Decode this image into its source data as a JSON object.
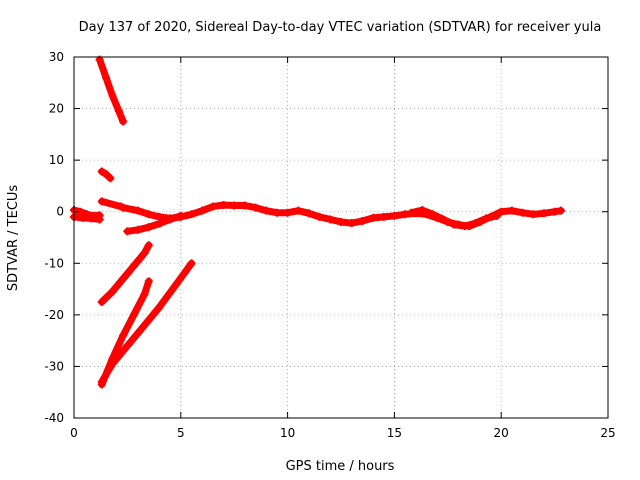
{
  "chart_data": {
    "type": "scatter",
    "title": "Day 137 of 2020, Sidereal Day-to-day VTEC variation (SDTVAR) for receiver yula",
    "xlabel": "GPS time / hours",
    "ylabel": "SDTVAR / TECUs",
    "xlim": [
      0,
      25
    ],
    "ylim": [
      -40,
      30
    ],
    "xticks": [
      0,
      5,
      10,
      15,
      20,
      25
    ],
    "yticks": [
      -40,
      -30,
      -20,
      -10,
      0,
      10,
      20,
      30
    ],
    "xtick_labels": [
      "0",
      "5",
      "10",
      "15",
      "20",
      "25"
    ],
    "ytick_labels": [
      "-40",
      "-30",
      "-20",
      "-10",
      "0",
      "10",
      "20",
      "30"
    ],
    "grid": true,
    "marker": "plus",
    "color": "#ff0000",
    "series": [
      {
        "name": "arc-main",
        "x": [
          2.3,
          3.0,
          3.5,
          4.0,
          4.5,
          5.0,
          5.5,
          6.0,
          6.5,
          7.0,
          7.5,
          8.0,
          8.5,
          9.0,
          9.5,
          10.0,
          10.5,
          11.0,
          11.5,
          12.0,
          12.5,
          13.0,
          13.5,
          14.0,
          14.5,
          15.0,
          15.5,
          16.0,
          16.5,
          17.0,
          17.5,
          18.0,
          18.5,
          19.0,
          19.5,
          20.0,
          20.5,
          21.0,
          21.5,
          22.0,
          22.5,
          22.8
        ],
        "y": [
          0.8,
          0.2,
          -0.5,
          -1.0,
          -1.3,
          -1.0,
          -0.5,
          0.2,
          1.0,
          1.3,
          1.2,
          1.2,
          0.8,
          0.2,
          -0.2,
          -0.2,
          0.2,
          -0.3,
          -1.0,
          -1.5,
          -2.0,
          -2.2,
          -1.8,
          -1.2,
          -1.0,
          -0.8,
          -0.5,
          -0.3,
          -0.5,
          -1.2,
          -2.0,
          -2.5,
          -2.8,
          -2.0,
          -1.0,
          0.0,
          0.2,
          -0.2,
          -0.5,
          -0.3,
          0.0,
          0.2
        ]
      },
      {
        "name": "arc-split",
        "x": [
          15.8,
          16.3,
          16.8,
          17.3,
          17.8,
          18.3,
          18.8,
          19.3,
          19.8
        ],
        "y": [
          -0.2,
          0.3,
          -0.5,
          -1.5,
          -2.5,
          -2.8,
          -2.2,
          -1.3,
          -0.8
        ]
      },
      {
        "name": "arc-start",
        "x": [
          0.0,
          0.3,
          0.6,
          0.9,
          1.2
        ],
        "y": [
          0.3,
          0.0,
          -0.5,
          -0.8,
          -0.7
        ]
      },
      {
        "name": "arc-start-low",
        "x": [
          0.0,
          0.4,
          0.8,
          1.2
        ],
        "y": [
          -1.0,
          -1.2,
          -1.3,
          -1.5
        ]
      },
      {
        "name": "arc-short",
        "x": [
          2.5,
          3.0,
          3.5,
          4.0,
          4.5,
          5.0
        ],
        "y": [
          -3.8,
          -3.5,
          -3.0,
          -2.3,
          -1.5,
          -0.8
        ]
      },
      {
        "name": "arc-desc",
        "x": [
          1.2,
          1.5,
          1.8,
          2.1,
          2.3
        ],
        "y": [
          29.5,
          26.0,
          22.5,
          19.5,
          17.5
        ]
      },
      {
        "name": "arc-desc-short",
        "x": [
          1.3,
          1.5,
          1.7
        ],
        "y": [
          7.8,
          7.3,
          6.5
        ]
      },
      {
        "name": "arc-rise-1",
        "x": [
          1.3,
          1.8,
          2.3,
          2.8,
          3.3,
          3.5
        ],
        "y": [
          -17.5,
          -15.5,
          -13.0,
          -10.5,
          -8.0,
          -6.5
        ]
      },
      {
        "name": "arc-rise-2",
        "x": [
          1.3,
          1.8,
          2.3,
          2.8,
          3.3,
          3.5
        ],
        "y": [
          -33.5,
          -28.5,
          -24.0,
          -20.0,
          -16.0,
          -13.5
        ]
      },
      {
        "name": "arc-rise-3",
        "x": [
          1.3,
          1.8,
          2.5,
          3.2,
          4.0,
          4.8,
          5.5
        ],
        "y": [
          -33.0,
          -29.5,
          -26.0,
          -22.5,
          -18.5,
          -14.0,
          -10.0
        ]
      },
      {
        "name": "isolated-points",
        "x": [
          1.3,
          2.2
        ],
        "y": [
          2.0,
          1.0
        ]
      }
    ]
  }
}
